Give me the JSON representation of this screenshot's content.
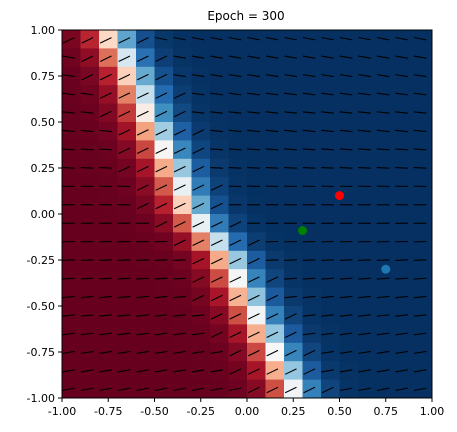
{
  "chart_data": {
    "type": "heatmap",
    "title": "Epoch = 300",
    "xlabel": "",
    "ylabel": "",
    "xlim": [
      -1.0,
      1.0
    ],
    "ylim": [
      -1.0,
      1.0
    ],
    "x_ticks": [
      "-1.00",
      "-0.75",
      "-0.50",
      "-0.25",
      "0.00",
      "0.25",
      "0.50",
      "0.75",
      "1.00"
    ],
    "y_ticks": [
      "1.00",
      "0.75",
      "0.50",
      "0.25",
      "0.00",
      "-0.25",
      "-0.50",
      "-0.75",
      "-1.00"
    ],
    "x_tick_values": [
      -1.0,
      -0.75,
      -0.5,
      -0.25,
      0.0,
      0.25,
      0.5,
      0.75,
      1.0
    ],
    "y_tick_values": [
      1.0,
      0.75,
      0.5,
      0.25,
      0.0,
      -0.25,
      -0.5,
      -0.75,
      -1.0
    ],
    "colormap": "RdBu",
    "grid_size": 20,
    "boundary": [
      {
        "y": 1.0,
        "x": -0.75
      },
      {
        "y": 0.75,
        "x": -0.62
      },
      {
        "y": 0.5,
        "x": -0.52
      },
      {
        "y": 0.25,
        "x": -0.4
      },
      {
        "y": 0.0,
        "x": -0.3
      },
      {
        "y": -0.25,
        "x": -0.1
      },
      {
        "y": -0.5,
        "x": 0.02
      },
      {
        "y": -0.75,
        "x": 0.15
      },
      {
        "y": -1.0,
        "x": 0.27
      }
    ],
    "points": [
      {
        "x": 0.5,
        "y": 0.1,
        "color": "#ff0000"
      },
      {
        "x": 0.3,
        "y": -0.09,
        "color": "#008000"
      },
      {
        "x": 0.75,
        "y": -0.3,
        "color": "#1f77b4"
      }
    ],
    "quiver": {
      "color": "#000000"
    }
  }
}
